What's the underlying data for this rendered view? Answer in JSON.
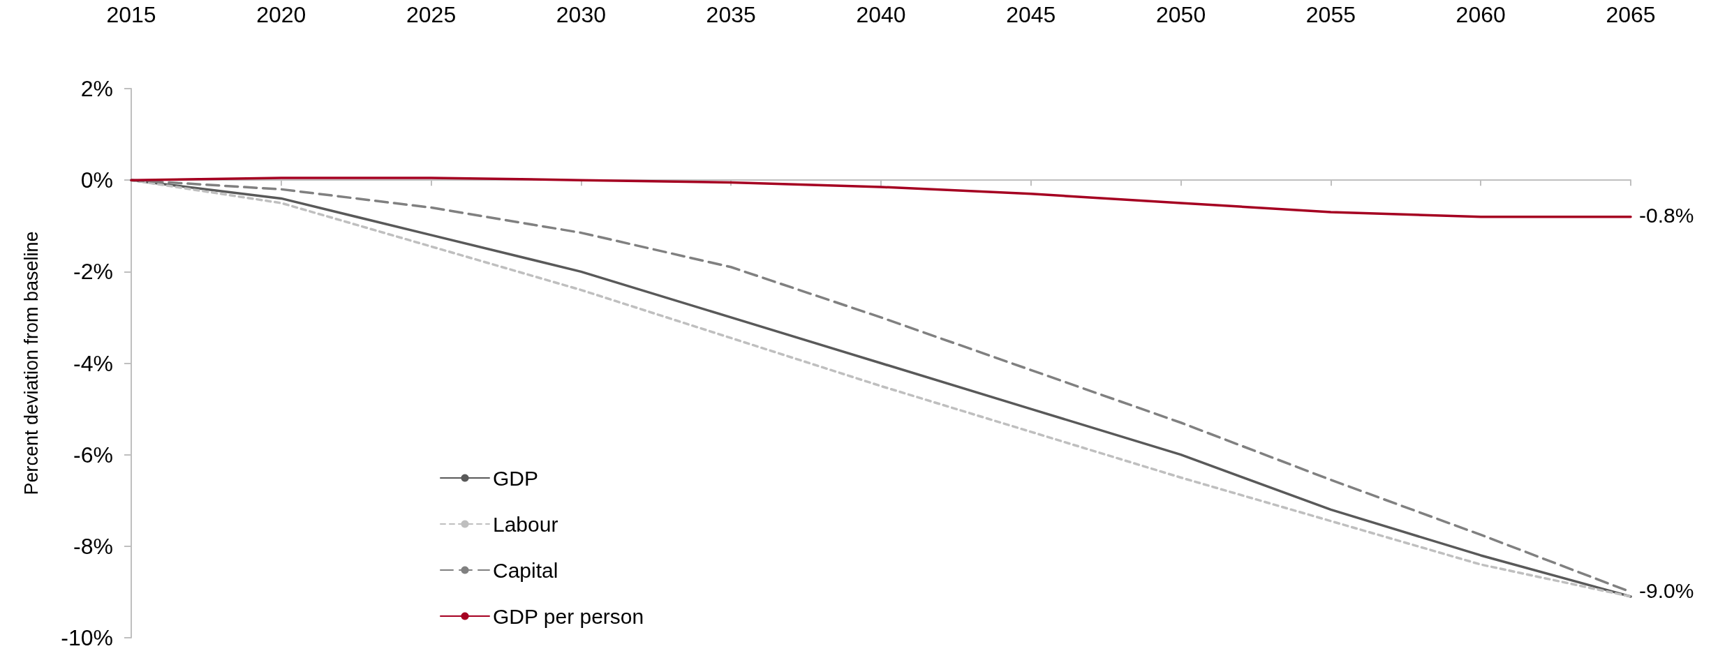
{
  "chart_data": {
    "type": "line",
    "ylabel": "Percent deviation from baseline",
    "x": [
      2015,
      2020,
      2025,
      2030,
      2035,
      2040,
      2045,
      2050,
      2055,
      2060,
      2065
    ],
    "xlim": [
      2015,
      2065
    ],
    "xticks": [
      2015,
      2020,
      2025,
      2030,
      2035,
      2040,
      2045,
      2050,
      2055,
      2060,
      2065
    ],
    "ylim": [
      -10,
      2
    ],
    "yticks": [
      {
        "value": -10,
        "label": "-10%"
      },
      {
        "value": -8,
        "label": "-8%"
      },
      {
        "value": -6,
        "label": "-6%"
      },
      {
        "value": -4,
        "label": "-4%"
      },
      {
        "value": -2,
        "label": "-2%"
      },
      {
        "value": 0,
        "label": "0%"
      },
      {
        "value": 2,
        "label": "2%"
      }
    ],
    "legend": "bottom left",
    "marker": "none",
    "series": [
      {
        "name": "GDP",
        "color": "#595959",
        "line_style": "solid",
        "values": [
          0,
          -0.4,
          -1.2,
          -2.0,
          -3.0,
          -4.0,
          -5.0,
          -6.0,
          -7.2,
          -8.2,
          -9.1
        ]
      },
      {
        "name": "Labour",
        "color": "#bfbfbf",
        "line_style": "dotted",
        "values": [
          0,
          -0.5,
          -1.45,
          -2.4,
          -3.45,
          -4.5,
          -5.5,
          -6.5,
          -7.45,
          -8.4,
          -9.1
        ]
      },
      {
        "name": "Capital",
        "color": "#808080",
        "line_style": "dashed",
        "values": [
          0,
          -0.2,
          -0.6,
          -1.15,
          -1.9,
          -3.0,
          -4.15,
          -5.3,
          -6.55,
          -7.75,
          -9.0
        ]
      },
      {
        "name": "GDP per person",
        "color": "#a50021",
        "line_style": "solid",
        "values": [
          0,
          0.05,
          0.05,
          0,
          -0.05,
          -0.15,
          -0.3,
          -0.5,
          -0.7,
          -0.8,
          -0.8
        ]
      }
    ],
    "annotations": [
      {
        "text": "-0.8%",
        "x": 2065,
        "y": -0.8
      },
      {
        "text": "-9.0%",
        "x": 2065,
        "y": -9.0
      }
    ]
  }
}
